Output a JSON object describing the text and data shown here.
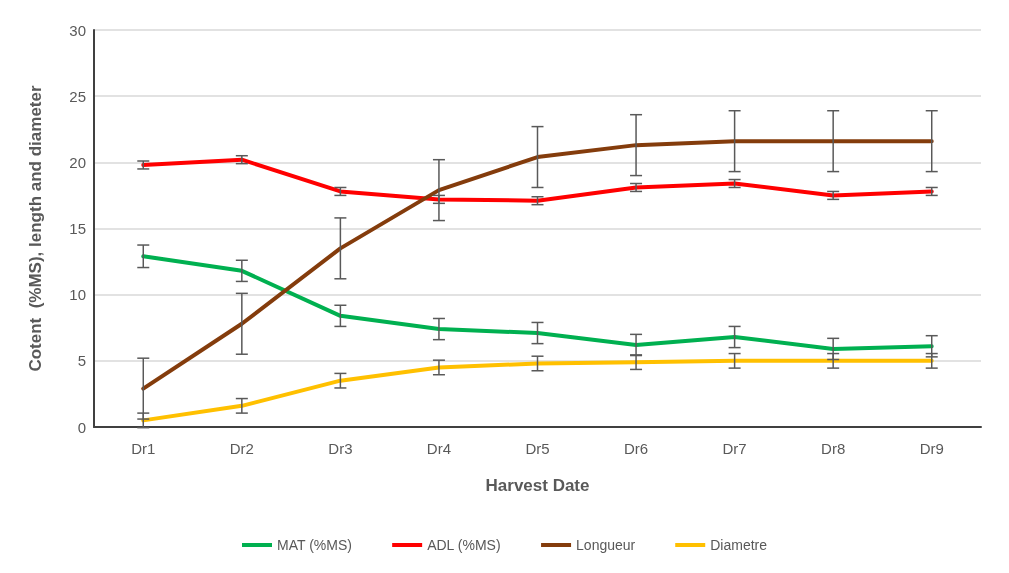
{
  "chart_data": {
    "type": "line",
    "xlabel": "Harvest Date",
    "ylabel": "Cotent  (%MS), length and diameter",
    "categories": [
      "Dr1",
      "Dr2",
      "Dr3",
      "Dr4",
      "Dr5",
      "Dr6",
      "Dr7",
      "Dr8",
      "Dr9"
    ],
    "series": [
      {
        "name": "MAT (%MS)",
        "color": "#00b050",
        "values": [
          12.9,
          11.8,
          8.4,
          7.4,
          7.1,
          6.2,
          6.8,
          5.9,
          6.1
        ],
        "errors": [
          0.85,
          0.8,
          0.8,
          0.8,
          0.8,
          0.8,
          0.8,
          0.8,
          0.8
        ]
      },
      {
        "name": "ADL (%MS)",
        "color": "#ff0000",
        "values": [
          19.8,
          20.2,
          17.8,
          17.2,
          17.1,
          18.1,
          18.4,
          17.5,
          17.8
        ],
        "errors": [
          0.3,
          0.3,
          0.3,
          0.3,
          0.3,
          0.3,
          0.3,
          0.3,
          0.3
        ]
      },
      {
        "name": "Longueur",
        "color": "#843c0c",
        "values": [
          2.9,
          7.8,
          13.5,
          17.9,
          20.4,
          21.3,
          21.6,
          21.6,
          21.6
        ],
        "errors": [
          2.3,
          2.3,
          2.3,
          2.3,
          2.3,
          2.3,
          2.3,
          2.3,
          2.3
        ]
      },
      {
        "name": "Diametre",
        "color": "#ffc000",
        "values": [
          0.5,
          1.6,
          3.5,
          4.5,
          4.8,
          4.9,
          5.0,
          5.0,
          5.0
        ],
        "errors": [
          0.55,
          0.55,
          0.55,
          0.55,
          0.55,
          0.55,
          0.55,
          0.55,
          0.55
        ]
      }
    ],
    "ylim": [
      0,
      30
    ],
    "yticks": [
      0,
      5,
      10,
      15,
      20,
      25,
      30
    ],
    "grid": "y",
    "legend": "bottom",
    "marker": "none",
    "line_style": "solid"
  }
}
